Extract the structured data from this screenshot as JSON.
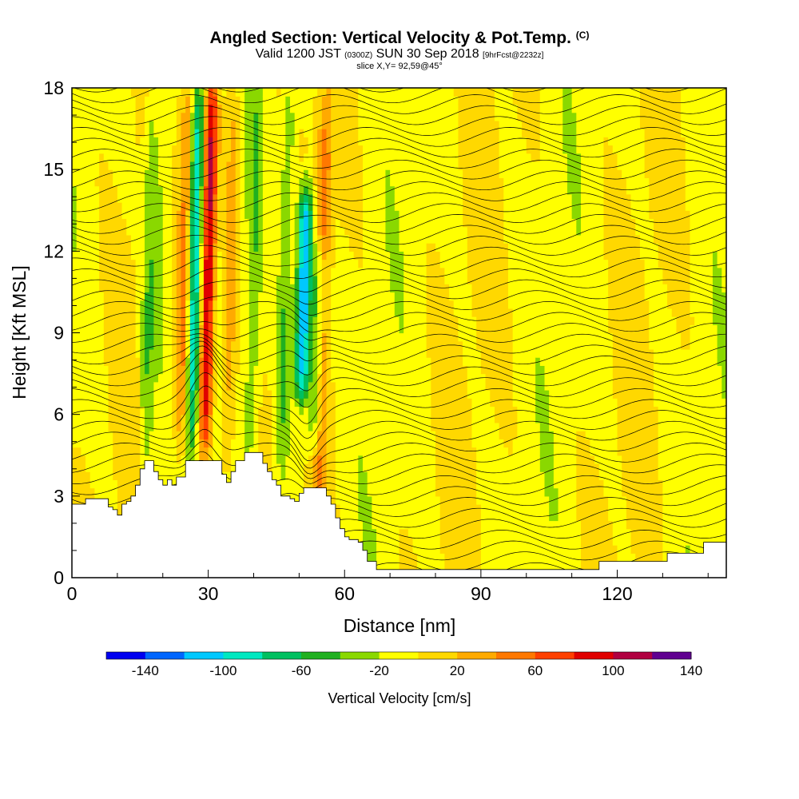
{
  "title": {
    "main": "Angled Section: Vertical Velocity & Pot.Temp.",
    "main_unit": "(C)",
    "valid_prefix": "Valid 1200 JST",
    "valid_z": "(0300Z)",
    "valid_date": "SUN 30 Sep 2018",
    "valid_fcst": "[9hrFcst@2232z]",
    "slice": "slice X,Y= 92,59@45°"
  },
  "colorbar": {
    "label": "Vertical Velocity [cm/s]",
    "tick_labels": [
      "-140",
      "-100",
      "-60",
      "-20",
      "20",
      "60",
      "100",
      "140"
    ],
    "levels": [
      -160,
      -140,
      -120,
      -100,
      -80,
      -60,
      -40,
      -20,
      0,
      20,
      40,
      60,
      80,
      100,
      120,
      140,
      160
    ],
    "colors": [
      "#0000f0",
      "#0066ff",
      "#00c8ff",
      "#00e8c0",
      "#00c060",
      "#20b020",
      "#8ad800",
      "#ffff00",
      "#ffd800",
      "#ffaa00",
      "#ff7800",
      "#ff4000",
      "#e00000",
      "#b00040",
      "#600090"
    ]
  },
  "chart_data": {
    "type": "heatmap",
    "title": "Angled Section: Vertical Velocity & Pot.Temp. (C)",
    "xlabel": "Distance [nm]",
    "ylabel": "Height [Kft MSL]",
    "xlim": [
      0,
      144
    ],
    "ylim": [
      0,
      18
    ],
    "xticks": [
      0,
      30,
      60,
      90,
      120
    ],
    "yticks": [
      0,
      3,
      6,
      9,
      12,
      15,
      18
    ],
    "fill_variable": "Vertical Velocity [cm/s]",
    "contour_variable": "Pot.Temp. (C)",
    "features": [
      {
        "x": 27,
        "w": -100,
        "z_min": 5,
        "z_max": 18
      },
      {
        "x": 30,
        "w": 120,
        "z_min": 5,
        "z_max": 18
      },
      {
        "x": 51,
        "w": -130,
        "z_min": 7,
        "z_max": 14
      },
      {
        "x": 54,
        "w": -80,
        "z_min": 5,
        "z_max": 12
      },
      {
        "x": 55,
        "w": 60,
        "z_min": 3,
        "z_max": 17
      },
      {
        "x": 47,
        "w": -40,
        "z_min": 3,
        "z_max": 18
      },
      {
        "x": 17,
        "w": -40,
        "z_min": 4,
        "z_max": 18
      },
      {
        "x": 20,
        "w": -30,
        "z_min": 8,
        "z_max": 18
      },
      {
        "x": 25,
        "w": 60,
        "z_min": 5,
        "z_max": 18
      },
      {
        "x": 35,
        "w": 40,
        "z_min": 4,
        "z_max": 18
      },
      {
        "x": 40,
        "w": -30,
        "z_min": 4,
        "z_max": 18
      }
    ],
    "terrain_height_kft": [
      [
        0,
        2.7
      ],
      [
        3,
        2.9
      ],
      [
        6,
        2.9
      ],
      [
        8,
        2.6
      ],
      [
        9,
        2.5
      ],
      [
        10,
        2.3
      ],
      [
        11,
        2.7
      ],
      [
        12,
        2.8
      ],
      [
        13,
        3.0
      ],
      [
        14,
        3.4
      ],
      [
        15,
        4.0
      ],
      [
        16,
        4.3
      ],
      [
        18,
        3.9
      ],
      [
        19,
        3.6
      ],
      [
        20,
        3.4
      ],
      [
        21,
        3.6
      ],
      [
        22,
        3.4
      ],
      [
        23,
        3.7
      ],
      [
        25,
        4.3
      ],
      [
        30,
        4.3
      ],
      [
        33,
        3.8
      ],
      [
        34,
        3.5
      ],
      [
        35,
        3.9
      ],
      [
        36,
        4.3
      ],
      [
        38,
        4.6
      ],
      [
        41,
        4.6
      ],
      [
        42,
        4.2
      ],
      [
        43,
        3.9
      ],
      [
        44,
        3.6
      ],
      [
        45,
        3.4
      ],
      [
        46,
        3.0
      ],
      [
        47,
        3.0
      ],
      [
        48,
        2.9
      ],
      [
        49,
        2.8
      ],
      [
        50,
        3.1
      ],
      [
        51,
        3.3
      ],
      [
        55,
        3.3
      ],
      [
        56,
        3.0
      ],
      [
        57,
        2.7
      ],
      [
        58,
        2.2
      ],
      [
        59,
        1.8
      ],
      [
        60,
        1.5
      ],
      [
        61,
        1.4
      ],
      [
        63,
        1.3
      ],
      [
        64,
        1.0
      ],
      [
        65,
        0.6
      ],
      [
        67,
        0.3
      ],
      [
        115,
        0.3
      ],
      [
        116,
        0.6
      ],
      [
        130,
        0.6
      ],
      [
        131,
        0.9
      ],
      [
        138,
        0.9
      ],
      [
        139,
        1.3
      ],
      [
        144,
        1.3
      ]
    ]
  }
}
